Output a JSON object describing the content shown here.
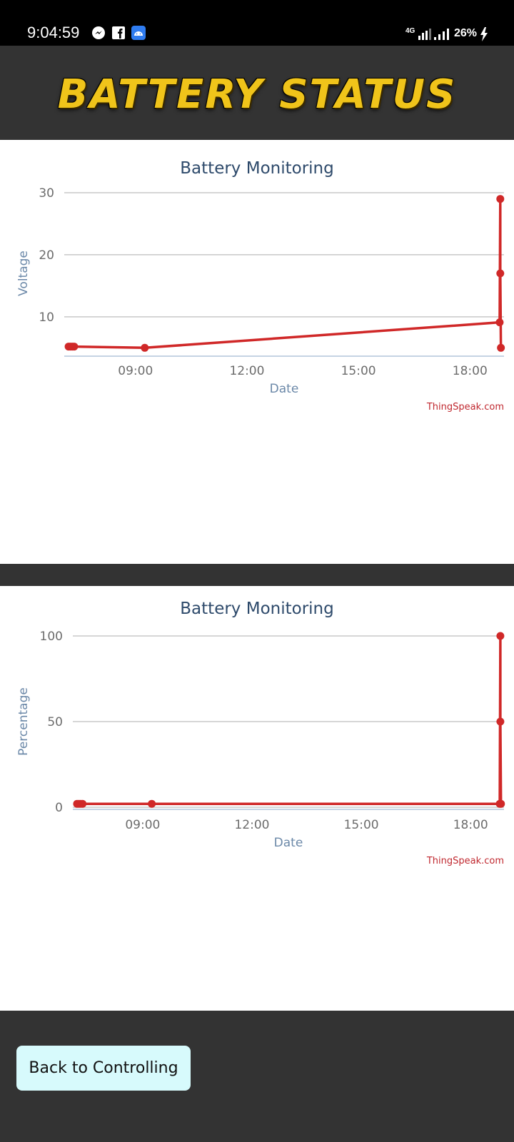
{
  "status_bar": {
    "time": "9:04:59",
    "app_icons": [
      "messenger-icon",
      "facebook-icon",
      "android-app-icon"
    ],
    "network": "4G",
    "battery": "26%"
  },
  "header": {
    "title": "BATTERY STATUS"
  },
  "charts": [
    {
      "credit": "ThingSpeak.com"
    },
    {
      "credit": "ThingSpeak.com"
    }
  ],
  "chart_data": [
    {
      "type": "line",
      "title": "Battery Monitoring",
      "xlabel": "Date",
      "ylabel": "Voltage",
      "x_ticks": [
        "09:00",
        "12:00",
        "15:00",
        "18:00"
      ],
      "y_ticks": [
        10,
        20,
        30
      ],
      "xlim": [
        "07:05",
        "18:55"
      ],
      "ylim": [
        4,
        30
      ],
      "grid": true,
      "color": "#d02828",
      "series": [
        {
          "x": [
            "07:12",
            "07:15",
            "07:18",
            "07:21",
            "09:15",
            "18:48",
            "18:49",
            "18:49",
            "18:50"
          ],
          "values": [
            5.2,
            5.2,
            5.2,
            5.2,
            5.0,
            9.1,
            29.0,
            17.0,
            5.0
          ]
        }
      ]
    },
    {
      "type": "line",
      "title": "Battery Monitoring",
      "xlabel": "Date",
      "ylabel": "Percentage",
      "x_ticks": [
        "09:00",
        "12:00",
        "15:00",
        "18:00"
      ],
      "y_ticks": [
        0,
        50,
        100
      ],
      "xlim": [
        "07:05",
        "18:55"
      ],
      "ylim": [
        0,
        100
      ],
      "grid": true,
      "color": "#d02828",
      "series": [
        {
          "x": [
            "07:12",
            "07:15",
            "07:18",
            "07:21",
            "09:15",
            "18:48",
            "18:49",
            "18:49",
            "18:50"
          ],
          "values": [
            2,
            2,
            2,
            2,
            2,
            2,
            100,
            50,
            2
          ]
        }
      ]
    }
  ],
  "footer": {
    "back_button_label": "Back to Controlling"
  },
  "colors": {
    "background": "#333333",
    "panel": "#ffffff",
    "line": "#d02828",
    "button": "#d7fafc",
    "title_gold": "#f0c41a"
  }
}
